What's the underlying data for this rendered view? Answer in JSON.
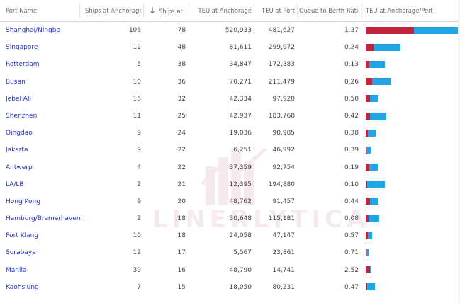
{
  "header": {
    "port_name": "Port Name",
    "ships_anchorage": "Ships at Anchorage",
    "sort_indicator": "↓",
    "ships_port": "Ships at...",
    "teu_anchorage": "TEU at Anchorage",
    "teu_port": "TEU at Port",
    "queue_ratio": "Queue to Berth Ratio",
    "teu_bar": "TEU at Anchorage/Port"
  },
  "colors": {
    "anchorage": "#c0233b",
    "port": "#1fa5e6",
    "link": "#2233cc"
  },
  "bar_max_teu": 1002560,
  "rows": [
    {
      "port": "Shanghai/Ningbo",
      "ships_anchorage": "106",
      "ships_port": "78",
      "teu_anchorage": "520,933",
      "teu_port": "481,627",
      "queue_ratio": "1.37",
      "teu_a": 520933,
      "teu_p": 481627
    },
    {
      "port": "Singapore",
      "ships_anchorage": "12",
      "ships_port": "48",
      "teu_anchorage": "81,611",
      "teu_port": "299,972",
      "queue_ratio": "0.24",
      "teu_a": 81611,
      "teu_p": 299972
    },
    {
      "port": "Rotterdam",
      "ships_anchorage": "5",
      "ships_port": "38",
      "teu_anchorage": "34,847",
      "teu_port": "172,383",
      "queue_ratio": "0.13",
      "teu_a": 34847,
      "teu_p": 172383
    },
    {
      "port": "Busan",
      "ships_anchorage": "10",
      "ships_port": "36",
      "teu_anchorage": "70,271",
      "teu_port": "211,479",
      "queue_ratio": "0.26",
      "teu_a": 70271,
      "teu_p": 211479
    },
    {
      "port": "Jebel Ali",
      "ships_anchorage": "16",
      "ships_port": "32",
      "teu_anchorage": "42,334",
      "teu_port": "97,920",
      "queue_ratio": "0.50",
      "teu_a": 42334,
      "teu_p": 97920
    },
    {
      "port": "Shenzhen",
      "ships_anchorage": "11",
      "ships_port": "25",
      "teu_anchorage": "42,937",
      "teu_port": "183,768",
      "queue_ratio": "0.42",
      "teu_a": 42937,
      "teu_p": 183768
    },
    {
      "port": "Qingdao",
      "ships_anchorage": "9",
      "ships_port": "24",
      "teu_anchorage": "19,036",
      "teu_port": "90,985",
      "queue_ratio": "0.38",
      "teu_a": 19036,
      "teu_p": 90985
    },
    {
      "port": "Jakarta",
      "ships_anchorage": "9",
      "ships_port": "22",
      "teu_anchorage": "6,251",
      "teu_port": "46,992",
      "queue_ratio": "0.39",
      "teu_a": 6251,
      "teu_p": 46992
    },
    {
      "port": "Antwerp",
      "ships_anchorage": "4",
      "ships_port": "22",
      "teu_anchorage": "37,359",
      "teu_port": "92,754",
      "queue_ratio": "0.19",
      "teu_a": 37359,
      "teu_p": 92754
    },
    {
      "port": "LA/LB",
      "ships_anchorage": "2",
      "ships_port": "21",
      "teu_anchorage": "12,395",
      "teu_port": "194,880",
      "queue_ratio": "0.10",
      "teu_a": 12395,
      "teu_p": 194880
    },
    {
      "port": "Hong Kong",
      "ships_anchorage": "9",
      "ships_port": "20",
      "teu_anchorage": "48,762",
      "teu_port": "91,457",
      "queue_ratio": "0.44",
      "teu_a": 48762,
      "teu_p": 91457
    },
    {
      "port": "Hamburg/Bremerhaven",
      "ships_anchorage": "2",
      "ships_port": "18",
      "teu_anchorage": "30,648",
      "teu_port": "115,181",
      "queue_ratio": "0.08",
      "teu_a": 30648,
      "teu_p": 115181
    },
    {
      "port": "Port Klang",
      "ships_anchorage": "10",
      "ships_port": "18",
      "teu_anchorage": "24,058",
      "teu_port": "47,147",
      "queue_ratio": "0.57",
      "teu_a": 24058,
      "teu_p": 47147
    },
    {
      "port": "Surabaya",
      "ships_anchorage": "12",
      "ships_port": "17",
      "teu_anchorage": "5,567",
      "teu_port": "23,861",
      "queue_ratio": "0.71",
      "teu_a": 5567,
      "teu_p": 23861
    },
    {
      "port": "Manila",
      "ships_anchorage": "39",
      "ships_port": "16",
      "teu_anchorage": "48,790",
      "teu_port": "14,741",
      "queue_ratio": "2.52",
      "teu_a": 48790,
      "teu_p": 14741
    },
    {
      "port": "Kaohsiung",
      "ships_anchorage": "7",
      "ships_port": "15",
      "teu_anchorage": "18,050",
      "teu_port": "80,231",
      "queue_ratio": "0.47",
      "teu_a": 18050,
      "teu_p": 80231
    }
  ],
  "watermark": {
    "text": "LINERLYTICA"
  }
}
